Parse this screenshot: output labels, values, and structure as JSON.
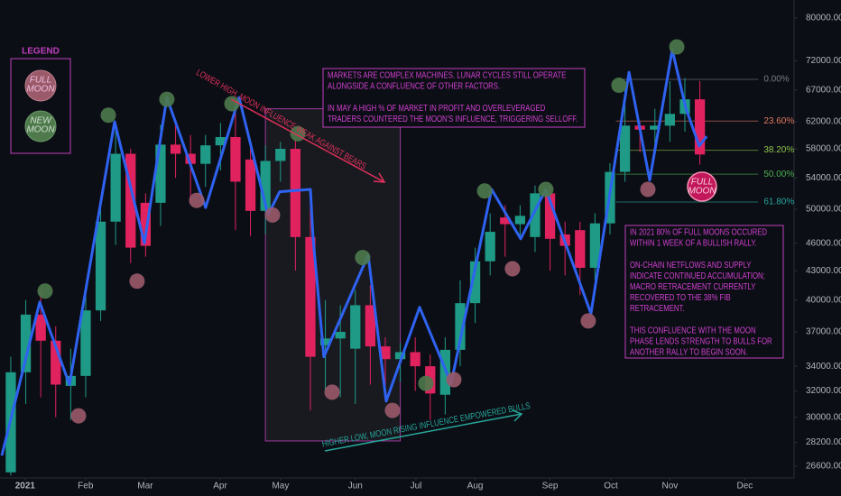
{
  "chart_data": {
    "type": "candlestick",
    "x": [
      0,
      1,
      2,
      3,
      4,
      5,
      6,
      7,
      8,
      9,
      10,
      11,
      12,
      13,
      14,
      15,
      16,
      17,
      18,
      19,
      20,
      21,
      22,
      23,
      24,
      25,
      26,
      27,
      28,
      29,
      30,
      31,
      32,
      33,
      34,
      35,
      36,
      37,
      38,
      39,
      40,
      41,
      42,
      43,
      44,
      45,
      46
    ],
    "open": [
      26200,
      33500,
      38600,
      36200,
      32400,
      33200,
      39000,
      48500,
      57300,
      50800,
      50800,
      58600,
      57300,
      55900,
      58500,
      59700,
      56500,
      49800,
      56300,
      58000,
      46700,
      35800,
      36400,
      35500,
      39500,
      35700,
      34600,
      35200,
      34000,
      31700,
      35400,
      39700,
      44000,
      49000,
      48200,
      46700,
      52000,
      47000,
      47500,
      43300,
      48300,
      54800,
      61400,
      60800,
      61400,
      63200,
      65500
    ],
    "high": [
      34800,
      40000,
      41000,
      37500,
      35500,
      40500,
      50000,
      61500,
      58000,
      52000,
      61500,
      61800,
      60000,
      60000,
      61800,
      64500,
      59000,
      58500,
      59000,
      59500,
      51000,
      40000,
      39500,
      41000,
      41500,
      36500,
      36000,
      36500,
      35000,
      36500,
      42000,
      45500,
      49500,
      50500,
      50500,
      53000,
      53000,
      48500,
      48500,
      49500,
      56000,
      67000,
      62000,
      64000,
      68500,
      69000,
      68500
    ],
    "low": [
      26000,
      31000,
      31500,
      30000,
      29800,
      31500,
      38000,
      45800,
      43800,
      44500,
      48000,
      54000,
      51000,
      52800,
      55000,
      47500,
      46800,
      47000,
      53500,
      43000,
      30500,
      32000,
      31500,
      31000,
      32500,
      31800,
      32700,
      32000,
      29800,
      30200,
      34000,
      37800,
      42500,
      44500,
      46700,
      45000,
      43000,
      42500,
      40500,
      42000,
      47000,
      53500,
      57500,
      58000,
      59000,
      60500,
      55800
    ],
    "close": [
      33500,
      38600,
      36200,
      32500,
      33200,
      39000,
      48500,
      57300,
      45500,
      45700,
      58600,
      57300,
      55900,
      58500,
      59700,
      53500,
      49800,
      56300,
      58000,
      46700,
      34800,
      36400,
      37000,
      39500,
      35700,
      34600,
      35200,
      34000,
      31800,
      35400,
      39700,
      44000,
      47300,
      48200,
      49200,
      52000,
      46500,
      45700,
      43300,
      48300,
      54800,
      61400,
      60800,
      61400,
      63200,
      65500,
      57200
    ],
    "up_color": "#1e9a86",
    "down_color": "#e0225f",
    "series": [
      {
        "type": "line",
        "color": "#2e62f0",
        "x": [
          -0.6,
          1.93,
          3.92,
          6.93,
          8.92,
          10.42,
          13.01,
          15.24,
          17.17,
          17.95,
          20.0,
          20.18,
          20.9,
          23.86,
          25.06,
          27.29,
          29.4,
          32.1,
          34.04,
          35.72,
          38.73,
          41.27,
          42.65,
          44.16,
          45.06,
          45.96,
          46.45
        ],
        "values": [
          27300,
          39800,
          32500,
          62000,
          46000,
          65800,
          50200,
          65800,
          49300,
          52200,
          52500,
          46500,
          34800,
          44700,
          31200,
          39300,
          32600,
          52500,
          46500,
          52500,
          38700,
          70000,
          53700,
          74000,
          64100,
          58400,
          59800
        ]
      }
    ],
    "full_moons": {
      "color": "#9a5a6a",
      "x": [
        4.52,
        8.43,
        12.41,
        17.47,
        21.45,
        25.48,
        29.58,
        33.49,
        38.55,
        42.53
      ],
      "values": [
        30100,
        41900,
        51100,
        49300,
        31900,
        30500,
        32900,
        43200,
        38000,
        52500
      ]
    },
    "new_moons": {
      "color": "#4e7a4c",
      "x": [
        2.29,
        6.51,
        10.42,
        14.76,
        19.16,
        23.49,
        27.71,
        31.63,
        35.72,
        40.6,
        44.46
      ],
      "values": [
        40900,
        63000,
        65500,
        64800,
        60200,
        44400,
        32600,
        52300,
        52500,
        67800,
        74500
      ]
    },
    "zone": {
      "x": [
        17.0,
        26.0
      ],
      "y": [
        28300,
        64000
      ]
    },
    "fib": {
      "ratios": [
        {
          "value": 0,
          "label": "0.00%"
        },
        {
          "value": 23.6,
          "label": "23.60%"
        },
        {
          "value": 38.2,
          "label": "38.20%"
        },
        {
          "value": 50,
          "label": "50.00%"
        },
        {
          "value": 61.8,
          "label": "61.80%"
        }
      ],
      "prices": [
        68800,
        62100,
        57800,
        54500,
        50900
      ],
      "colors": [
        "#787b86",
        "#e07a5f",
        "#8bc34a",
        "#4caf50",
        "#26a69a"
      ],
      "x": [
        40.4,
        49.9
      ]
    },
    "xlim": [
      -0.72,
      52.29
    ],
    "ylim": [
      25840,
      83600
    ],
    "log_scale": true,
    "grid": false,
    "xticks": [
      {
        "value": 0.96,
        "label": "2021"
      },
      {
        "value": 4.99,
        "label": "Feb"
      },
      {
        "value": 8.98,
        "label": "Mar"
      },
      {
        "value": 13.98,
        "label": "Apr"
      },
      {
        "value": 18.01,
        "label": "May"
      },
      {
        "value": 23.0,
        "label": "Jun"
      },
      {
        "value": 27.05,
        "label": "Jul"
      },
      {
        "value": 31.0,
        "label": "Aug"
      },
      {
        "value": 36.0,
        "label": "Sep"
      },
      {
        "value": 40.06,
        "label": "Oct"
      },
      {
        "value": 44.0,
        "label": "Nov"
      },
      {
        "value": 49.0,
        "label": "Dec"
      }
    ],
    "yticks": [
      {
        "value": 26600,
        "label": "26600.00"
      },
      {
        "value": 28200,
        "label": "28200.00"
      },
      {
        "value": 30000,
        "label": "30000.00"
      },
      {
        "value": 32000,
        "label": "32000.00"
      },
      {
        "value": 34000,
        "label": "34000.00"
      },
      {
        "value": 37000,
        "label": "37000.00"
      },
      {
        "value": 40000,
        "label": "40000.00"
      },
      {
        "value": 43000,
        "label": "43000.00"
      },
      {
        "value": 46000,
        "label": "46000.00"
      },
      {
        "value": 50000,
        "label": "50000.00"
      },
      {
        "value": 54000,
        "label": "54000.00"
      },
      {
        "value": 58000,
        "label": "58000.00"
      },
      {
        "value": 62000,
        "label": "62000.00"
      },
      {
        "value": 67000,
        "label": "67000.00"
      },
      {
        "value": 72000,
        "label": "72000.00"
      },
      {
        "value": 80000,
        "label": "80000.00"
      }
    ],
    "legend": {
      "title": "LEGEND",
      "full": [
        "FULL",
        "MOON"
      ],
      "new": [
        "NEW",
        "MOON"
      ]
    },
    "callout": [
      "FULL",
      "MOON"
    ],
    "annotations": {
      "lower_high": "LOWER HIGH, MOON INFLUENCE WEAK AGAINST BEARS",
      "higher_low": "HIGHER LOW, MOON RISING INFLUENCE EMPOWERED BULLS"
    },
    "notes": [
      {
        "paragraphs": [
          [
            "MARKETS ARE COMPLEX MACHINES. LUNAR CYCLES STILL OPERATE",
            "ALONGSIDE A CONFLUENCE OF OTHER FACTORS."
          ],
          [
            "IN MAY A HIGH % OF MARKET IN PROFIT AND OVERLEVERAGED",
            "TRADERS COUNTERED THE MOON'S INFLUENCE, TRIGGERING SELLOFF."
          ]
        ]
      },
      {
        "paragraphs": [
          [
            "IN 2021 80% OF FULL MOONS OCCURED",
            "WITHIN 1 WEEK OF A BULLISH RALLY."
          ],
          [
            "ON-CHAIN NETFLOWS AND SUPPLY",
            "INDICATE CONTINUED ACCUMULATION;",
            "MACRO RETRACEMENT CURRENTLY",
            "RECOVERED TO THE 38% FIB",
            "RETRACEMENT."
          ],
          [
            "THIS CONFLUENCE WITH THE MOON",
            "PHASE LENDS STRENGTH TO BULLS FOR",
            "ANOTHER RALLY TO BEGIN SOON."
          ]
        ]
      }
    ]
  }
}
